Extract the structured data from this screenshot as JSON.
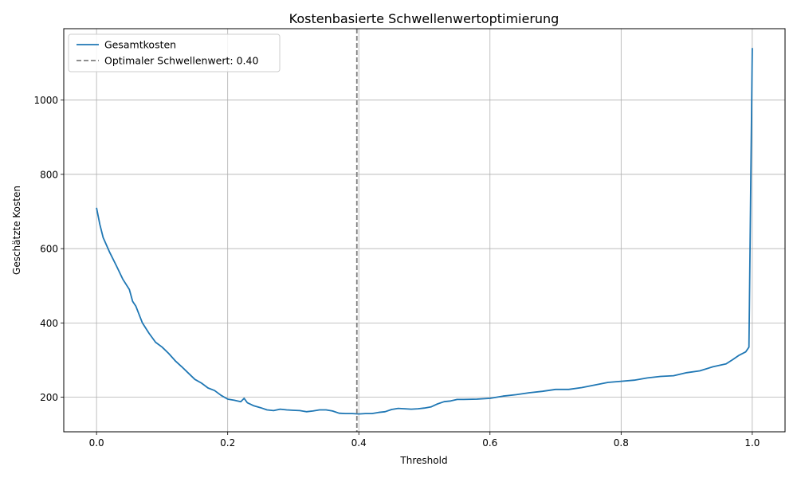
{
  "chart_data": {
    "type": "line",
    "title": "Kostenbasierte Schwellenwertoptimierung",
    "xlabel": "Threshold",
    "ylabel": "Geschätzte Kosten",
    "xlim": [
      -0.05,
      1.05
    ],
    "ylim": [
      107,
      1192
    ],
    "xticks": [
      0.0,
      0.2,
      0.4,
      0.6,
      0.8,
      1.0
    ],
    "xtick_labels": [
      "0.0",
      "0.2",
      "0.4",
      "0.6",
      "0.8",
      "1.0"
    ],
    "yticks": [
      200,
      400,
      600,
      800,
      1000
    ],
    "ytick_labels": [
      "200",
      "400",
      "600",
      "800",
      "1000"
    ],
    "grid": true,
    "legend_position": "top-left",
    "series": [
      {
        "name": "Gesamtkosten",
        "color": "#1f77b4",
        "style": "solid",
        "x": [
          0.0,
          0.005,
          0.01,
          0.02,
          0.03,
          0.04,
          0.05,
          0.055,
          0.06,
          0.07,
          0.08,
          0.09,
          0.1,
          0.11,
          0.12,
          0.13,
          0.14,
          0.15,
          0.16,
          0.17,
          0.18,
          0.19,
          0.2,
          0.21,
          0.22,
          0.225,
          0.23,
          0.24,
          0.25,
          0.26,
          0.27,
          0.28,
          0.29,
          0.3,
          0.31,
          0.32,
          0.33,
          0.34,
          0.35,
          0.36,
          0.37,
          0.38,
          0.39,
          0.4,
          0.41,
          0.42,
          0.43,
          0.44,
          0.45,
          0.46,
          0.47,
          0.48,
          0.49,
          0.5,
          0.51,
          0.52,
          0.53,
          0.54,
          0.55,
          0.56,
          0.58,
          0.6,
          0.62,
          0.64,
          0.66,
          0.68,
          0.7,
          0.72,
          0.74,
          0.76,
          0.78,
          0.8,
          0.82,
          0.84,
          0.86,
          0.88,
          0.9,
          0.92,
          0.94,
          0.96,
          0.97,
          0.98,
          0.99,
          0.995,
          1.0
        ],
        "y": [
          710,
          665,
          630,
          590,
          555,
          518,
          490,
          458,
          445,
          400,
          372,
          348,
          335,
          318,
          298,
          282,
          265,
          248,
          238,
          225,
          218,
          205,
          195,
          192,
          188,
          197,
          185,
          177,
          172,
          166,
          164,
          168,
          166,
          165,
          164,
          161,
          163,
          166,
          166,
          163,
          157,
          156,
          156,
          155,
          156,
          156,
          159,
          161,
          167,
          170,
          169,
          168,
          169,
          171,
          174,
          182,
          188,
          190,
          194,
          194,
          195,
          197,
          203,
          207,
          212,
          216,
          221,
          221,
          226,
          233,
          240,
          243,
          246,
          252,
          256,
          258,
          266,
          271,
          282,
          290,
          301,
          313,
          322,
          335,
          1140
        ]
      }
    ],
    "vlines": [
      {
        "name": "Optimaler Schwellenwert: 0.40",
        "x": 0.397,
        "color": "#7f7f7f",
        "style": "dashed"
      }
    ]
  }
}
